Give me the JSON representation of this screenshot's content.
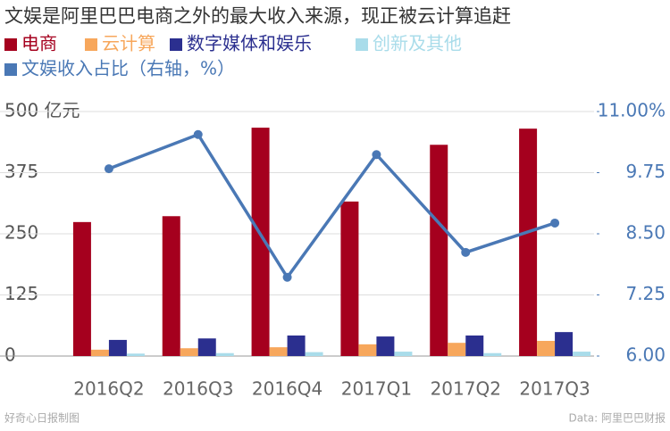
{
  "chart_data": {
    "type": "bar",
    "title": "文娱是阿里巴巴电商之外的最大收入来源，现正被云计算追赶",
    "categories": [
      "2016Q2",
      "2016Q3",
      "2016Q4",
      "2017Q1",
      "2017Q2",
      "2017Q3"
    ],
    "series": [
      {
        "name": "电商",
        "color": "#a5001e",
        "values": [
          274,
          286,
          467,
          316,
          432,
          465
        ]
      },
      {
        "name": "云计算",
        "color": "#f7a75c",
        "values": [
          13,
          16,
          18,
          24,
          27,
          31
        ]
      },
      {
        "name": "数字媒体和娱乐",
        "color": "#2b2f8f",
        "values": [
          33,
          36,
          42,
          40,
          42,
          49
        ]
      },
      {
        "name": "创新及其他",
        "color": "#a9dcea",
        "values": [
          5,
          6,
          8,
          9,
          6,
          9
        ]
      },
      {
        "name": "文娱收入占比（右轴，%）",
        "color": "#4a78b5",
        "axis": "y2",
        "values": [
          9.83,
          10.53,
          7.61,
          10.12,
          8.12,
          8.72
        ]
      }
    ],
    "ylim": [
      0,
      500
    ],
    "yticks": [
      0,
      125,
      250,
      375,
      {
        "value": 500,
        "label": "500 亿元"
      }
    ],
    "y2lim": [
      6,
      11
    ],
    "y2ticks": [
      {
        "value": 6,
        "label": "6.00"
      },
      7.25,
      {
        "value": 8.5,
        "label": "8.50"
      },
      9.75,
      {
        "value": 11,
        "label": "11.00%"
      }
    ],
    "grid": true,
    "credit": "好奇心日报制图",
    "source": "Data: 阿里巴巴财报"
  }
}
